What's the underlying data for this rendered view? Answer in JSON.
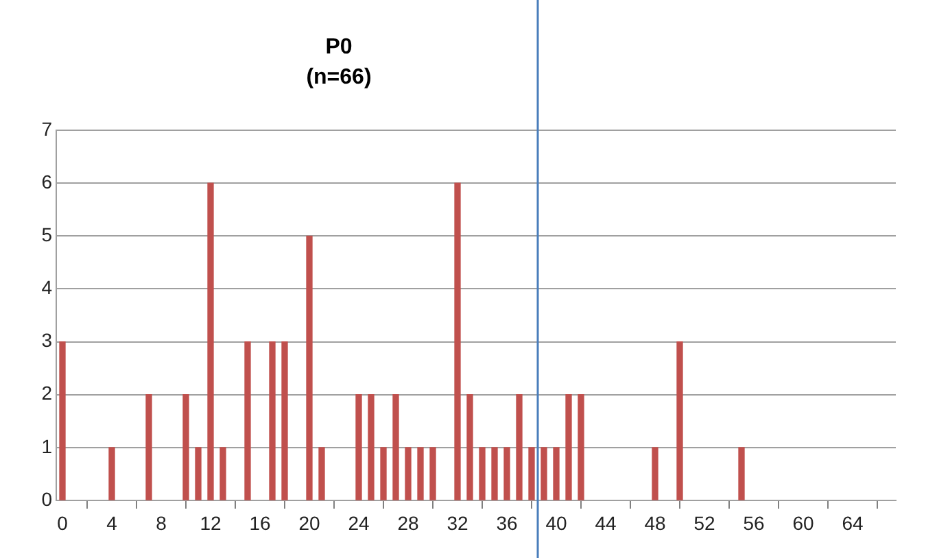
{
  "chart_data": {
    "type": "bar",
    "title": "P0",
    "subtitle": "(n=66)",
    "x": [
      0,
      4,
      7,
      10,
      11,
      12,
      13,
      15,
      17,
      18,
      20,
      21,
      24,
      25,
      26,
      27,
      28,
      29,
      30,
      32,
      33,
      34,
      35,
      36,
      37,
      38,
      39,
      40,
      41,
      42,
      48,
      50,
      55
    ],
    "values": [
      3,
      1,
      2,
      2,
      1,
      6,
      1,
      3,
      3,
      3,
      5,
      1,
      2,
      2,
      1,
      2,
      1,
      1,
      1,
      6,
      2,
      1,
      1,
      1,
      2,
      1,
      1,
      1,
      2,
      2,
      1,
      3,
      1
    ],
    "color": "#c0504d",
    "xlim": [
      -0.5,
      67.5
    ],
    "xticks": [
      0,
      4,
      8,
      12,
      16,
      20,
      24,
      28,
      32,
      36,
      40,
      44,
      48,
      52,
      56,
      60,
      64
    ],
    "ylim": [
      0,
      7
    ],
    "yticks": [
      0,
      1,
      2,
      3,
      4,
      5,
      6,
      7
    ],
    "grid": "y",
    "ref_lines": [
      {
        "axis": "x",
        "value": 38.5,
        "color": "#4a7ebb"
      }
    ]
  }
}
